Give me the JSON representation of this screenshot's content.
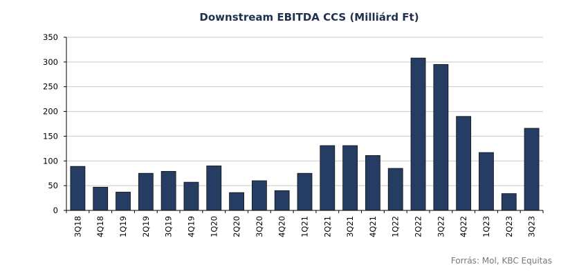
{
  "source_note": "Forrás: Mol, KBC Equitas",
  "colors": {
    "bar": "#253d62",
    "bar_stroke": "#111111",
    "grid": "#c8c8c8",
    "axis": "#000000",
    "title": "#1f2f4d",
    "source": "#777777"
  },
  "chart_data": {
    "type": "bar",
    "title": "Downstream EBITDA CCS (Milliárd Ft)",
    "xlabel": "",
    "ylabel": "",
    "categories": [
      "3Q18",
      "4Q18",
      "1Q19",
      "2Q19",
      "3Q19",
      "4Q19",
      "1Q20",
      "2Q20",
      "3Q20",
      "4Q20",
      "1Q21",
      "2Q21",
      "3Q21",
      "4Q21",
      "1Q22",
      "2Q22",
      "3Q22",
      "4Q22",
      "1Q23",
      "2Q23",
      "3Q23"
    ],
    "values": [
      89,
      47,
      37,
      75,
      79,
      57,
      90,
      36,
      60,
      40,
      75,
      131,
      131,
      111,
      85,
      308,
      295,
      190,
      117,
      34,
      166
    ],
    "ylim": [
      0,
      350
    ],
    "yticks": [
      "0",
      "50",
      "100",
      "150",
      "200",
      "250",
      "300",
      "350"
    ],
    "grid": true,
    "legend": "none"
  }
}
